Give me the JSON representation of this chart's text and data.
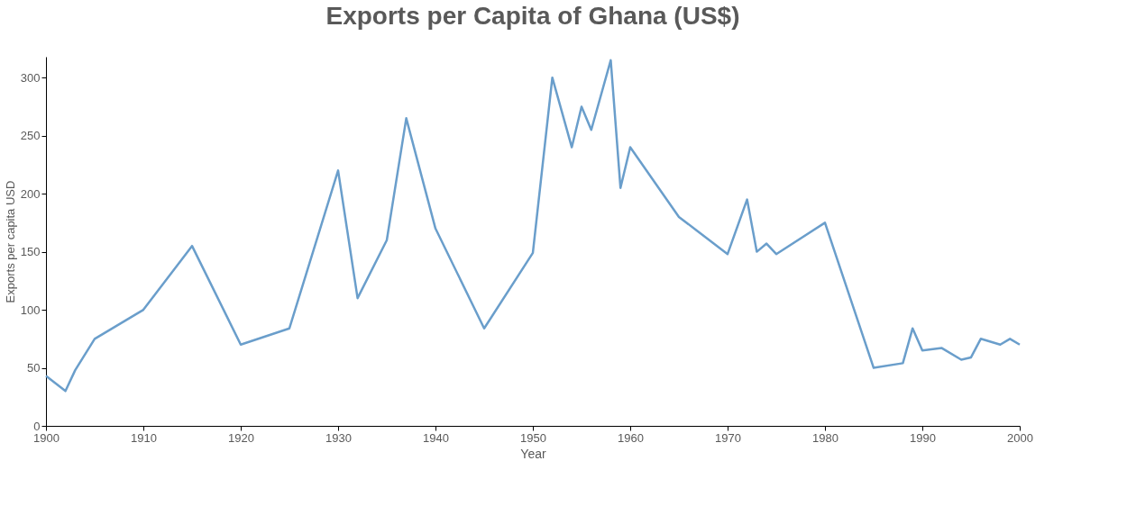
{
  "chart_data": {
    "type": "line",
    "title": "Exports per Capita of Ghana (US$)",
    "xlabel": "Year",
    "ylabel": "Exports per capita USD",
    "x": [
      1900,
      1902,
      1903,
      1905,
      1910,
      1915,
      1920,
      1925,
      1930,
      1932,
      1935,
      1937,
      1940,
      1945,
      1950,
      1952,
      1954,
      1955,
      1956,
      1958,
      1959,
      1960,
      1965,
      1970,
      1972,
      1973,
      1974,
      1975,
      1980,
      1985,
      1988,
      1989,
      1990,
      1992,
      1994,
      1995,
      1996,
      1998,
      1999,
      2000
    ],
    "series": [
      {
        "color": "#6a9ecb",
        "values": [
          43,
          30,
          48,
          75,
          100,
          155,
          70,
          84,
          220,
          110,
          160,
          265,
          170,
          84,
          149,
          300,
          240,
          275,
          255,
          315,
          205,
          240,
          180,
          148,
          195,
          150,
          157,
          148,
          175,
          50,
          54,
          84,
          65,
          67,
          57,
          59,
          75,
          70,
          75,
          70
        ]
      }
    ],
    "xlim": [
      1900,
      2000
    ],
    "xticks": [
      1900,
      1910,
      1920,
      1930,
      1940,
      1950,
      1960,
      1970,
      1980,
      1990,
      2000
    ],
    "ylim": [
      0,
      318
    ],
    "yticks": [
      0,
      50,
      100,
      150,
      200,
      250,
      300
    ],
    "grid": false,
    "legend": false,
    "marker": "none",
    "line_style": "solid"
  }
}
